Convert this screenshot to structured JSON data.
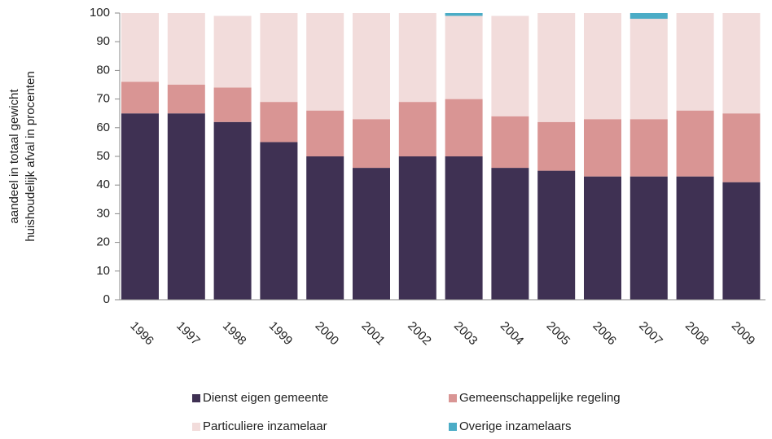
{
  "chart_data": {
    "type": "stacked-bar",
    "ylabel": [
      "aandeel in totaal gewicht",
      "huishoudelijk afval in procenten"
    ],
    "categories": [
      "1996",
      "1997",
      "1998",
      "1999",
      "2000",
      "2001",
      "2002",
      "2003",
      "2004",
      "2005",
      "2006",
      "2007",
      "2008",
      "2009"
    ],
    "series": [
      {
        "name": "Dienst eigen gemeente",
        "color": "#3f3153",
        "values": [
          65,
          65,
          62,
          55,
          50,
          46,
          50,
          50,
          46,
          45,
          43,
          43,
          43,
          41
        ]
      },
      {
        "name": "Gemeenschappelijke regeling",
        "color": "#d99594",
        "values": [
          11,
          10,
          12,
          14,
          16,
          17,
          19,
          20,
          18,
          17,
          20,
          20,
          23,
          24
        ]
      },
      {
        "name": "Particuliere inzamelaar",
        "color": "#f2dcdb",
        "values": [
          24,
          25,
          25,
          31,
          34,
          37,
          31,
          29,
          35,
          38,
          37,
          35,
          34,
          35
        ]
      },
      {
        "name": "Overige inzamelaars",
        "color": "#4bacc6",
        "values": [
          0,
          0,
          0,
          0,
          0,
          0,
          0,
          1,
          0,
          0,
          0,
          2,
          0,
          0
        ]
      }
    ],
    "ylim": [
      0,
      100
    ],
    "yticks": [
      0,
      10,
      20,
      30,
      40,
      50,
      60,
      70,
      80,
      90,
      100
    ],
    "grid": false
  }
}
